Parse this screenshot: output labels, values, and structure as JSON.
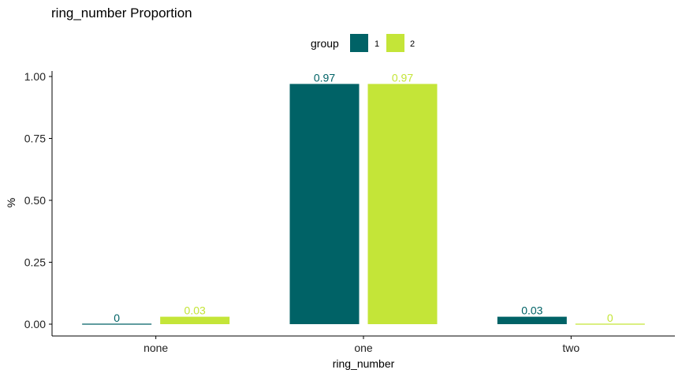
{
  "chart_data": {
    "type": "bar",
    "title": "ring_number Proportion",
    "xlabel": "ring_number",
    "ylabel": "%",
    "categories": [
      "none",
      "one",
      "two"
    ],
    "series": [
      {
        "name": "1",
        "color": "#006266",
        "values": [
          0,
          0.97,
          0.03
        ],
        "labels": [
          "0",
          "0.97",
          "0.03"
        ]
      },
      {
        "name": "2",
        "color": "#C4E538",
        "values": [
          0.03,
          0.97,
          0
        ],
        "labels": [
          "0.03",
          "0.97",
          "0"
        ]
      }
    ],
    "ylim": [
      0,
      1.0
    ],
    "yticks": [
      "0.00",
      "0.25",
      "0.50",
      "0.75",
      "1.00"
    ],
    "ytick_values": [
      0,
      0.25,
      0.5,
      0.75,
      1.0
    ],
    "legend": {
      "title": "group",
      "position": "top"
    },
    "grid": false
  }
}
